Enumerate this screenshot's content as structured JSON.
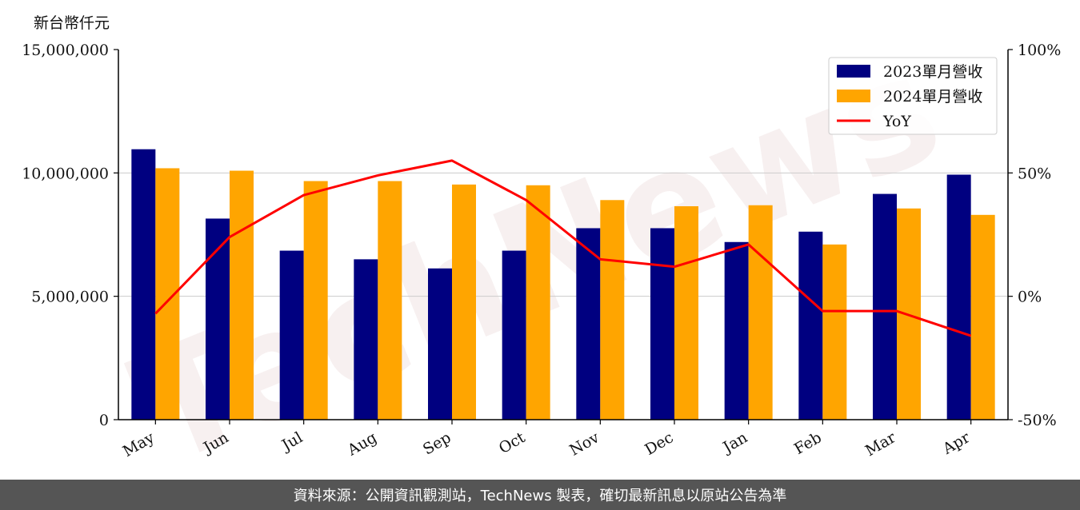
{
  "unit_label": "新台幣仟元",
  "watermark": "TechNews",
  "footer": "資料來源：公開資訊觀測站，TechNews 製表，確切最新訊息以原站公告為準",
  "colors": {
    "series_2023": "#000080",
    "series_2024": "#FFA500",
    "yoy": "#FF0000",
    "grid": "#cccccc"
  },
  "chart_data": {
    "type": "bar",
    "categories": [
      "May",
      "Jun",
      "Jul",
      "Aug",
      "Sep",
      "Oct",
      "Nov",
      "Dec",
      "Jan",
      "Feb",
      "Mar",
      "Apr"
    ],
    "series": [
      {
        "name": "2023單月營收",
        "values": [
          10960000,
          8150000,
          6850000,
          6500000,
          6130000,
          6850000,
          7760000,
          7760000,
          7200000,
          7620000,
          9150000,
          9930000
        ]
      },
      {
        "name": "2024單月營收",
        "values": [
          10190000,
          10090000,
          9670000,
          9670000,
          9530000,
          9500000,
          8900000,
          8650000,
          8690000,
          7100000,
          8560000,
          8300000
        ]
      }
    ],
    "line_series": {
      "name": "YoY",
      "axis": "right",
      "values": [
        -7,
        24,
        41,
        49,
        55,
        39,
        15,
        12,
        21,
        -6,
        -6,
        -16
      ]
    },
    "ylim": [
      0,
      15000000
    ],
    "yticks": [
      "0",
      "5,000,000",
      "10,000,000",
      "15,000,000"
    ],
    "y2lim": [
      -50,
      100
    ],
    "y2ticks": [
      "-50%",
      "0%",
      "50%",
      "100%"
    ],
    "grid": true,
    "legend_position": "top-right"
  }
}
